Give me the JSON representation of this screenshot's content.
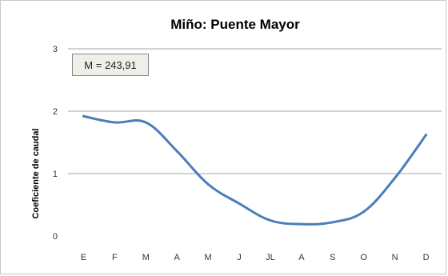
{
  "chart_data": {
    "type": "line",
    "title": "Miño: Puente Mayor",
    "xlabel": "",
    "ylabel": "Coeficiente de caudal",
    "categories": [
      "E",
      "F",
      "M",
      "A",
      "M",
      "J",
      "JL",
      "A",
      "S",
      "O",
      "N",
      "D"
    ],
    "series": [
      {
        "values": [
          1.92,
          1.82,
          1.82,
          1.36,
          0.83,
          0.52,
          0.25,
          0.19,
          0.22,
          0.39,
          0.93,
          1.62
        ]
      }
    ],
    "ylim": [
      0,
      3
    ],
    "yticks": [
      "0",
      "1",
      "2",
      "3"
    ],
    "grid": true,
    "annotation": "M = 243,91",
    "line_color": "#4a7ebb"
  }
}
